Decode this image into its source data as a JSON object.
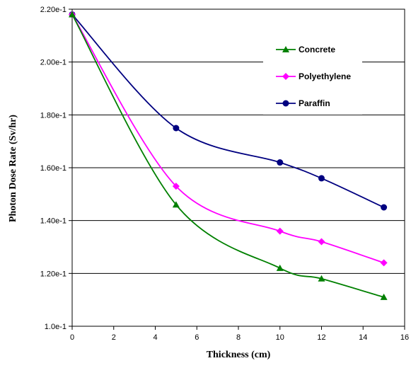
{
  "chart_data": {
    "type": "line",
    "xlabel": "Thickness (cm)",
    "ylabel": "Photon Dose Rate (Sv/hr)",
    "xlim": [
      0,
      16
    ],
    "ylim": [
      0.1,
      0.22
    ],
    "x_ticks": [
      "0",
      "2",
      "4",
      "6",
      "8",
      "10",
      "12",
      "14",
      "16"
    ],
    "y_ticks": [
      "2.20e-1",
      "2.00e-1",
      "1.80e-1",
      "1.60e-1",
      "1.40e-1",
      "1.20e-1",
      "1.0e-1"
    ],
    "grid": "horizontal",
    "legend_placement": "top-right",
    "series": [
      {
        "name": "Concrete",
        "color": "#008000",
        "marker": "triangle",
        "x": [
          0,
          5,
          10,
          12,
          15
        ],
        "values": [
          0.218,
          0.146,
          0.122,
          0.118,
          0.111
        ]
      },
      {
        "name": "Polyethylene",
        "color": "#ff00ff",
        "marker": "diamond",
        "x": [
          0,
          5,
          10,
          12,
          15
        ],
        "values": [
          0.218,
          0.153,
          0.136,
          0.132,
          0.124
        ]
      },
      {
        "name": "Paraffin",
        "color": "#000080",
        "marker": "circle",
        "x": [
          0,
          5,
          10,
          12,
          15
        ],
        "values": [
          0.218,
          0.175,
          0.162,
          0.156,
          0.145
        ]
      }
    ]
  }
}
